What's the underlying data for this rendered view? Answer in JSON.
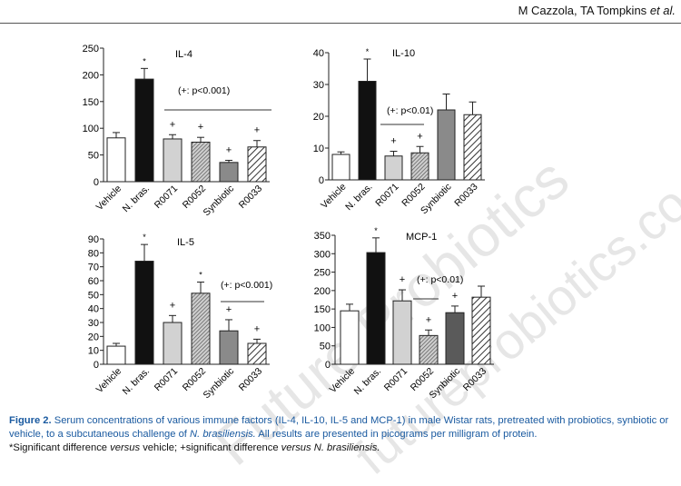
{
  "header": {
    "authors": "M Cazzola, TA Tompkins",
    "etal": "et al."
  },
  "caption": {
    "figure_label": "Figure 2.",
    "text": "Serum concentrations of various immune factors (IL-4, IL-10, IL-5 and MCP-1) in male Wistar rats, pretreated with probiotics, synbiotic or vehicle, to a subcutaneous challenge of",
    "species": "N. brasiliensis.",
    "text2": "All results are presented in picograms per milligram of protein.",
    "note_a": "*Significant difference",
    "note_versus1": "versus",
    "note_b": "vehicle; +significant difference",
    "note_versus2": "versus",
    "note_species": "N. brasiliensis."
  },
  "watermark": {
    "line1": "Future Probiotics",
    "line2": "futureprobiotics.co.uk"
  },
  "chart_data": [
    {
      "type": "bar",
      "title": "IL-4",
      "categories": [
        "Vehicle",
        "N. bras.",
        "R0071",
        "R0052",
        "Synbiotic",
        "R0033"
      ],
      "values": [
        82,
        192,
        80,
        74,
        36,
        65
      ],
      "errors": [
        10,
        20,
        8,
        9,
        4,
        12
      ],
      "marks": [
        "",
        "*",
        "+",
        "+",
        "+",
        "+"
      ],
      "fills": [
        "white",
        "black",
        "lightgray",
        "hatch-dense",
        "gray",
        "hatch"
      ],
      "ylim": [
        0,
        250
      ],
      "yticks": [
        0,
        50,
        100,
        150,
        200,
        250
      ],
      "annotation": "(+: p<0.001)"
    },
    {
      "type": "bar",
      "title": "IL-10",
      "categories": [
        "Vehicle",
        "N. bras.",
        "R0071",
        "R0052",
        "Synbiotic",
        "R0033"
      ],
      "values": [
        8,
        31,
        7.5,
        8.5,
        22,
        20.5
      ],
      "errors": [
        0.8,
        7,
        1.5,
        2,
        5,
        4
      ],
      "marks": [
        "",
        "*",
        "+",
        "+",
        "",
        ""
      ],
      "fills": [
        "white",
        "black",
        "lightgray",
        "hatch-dense",
        "gray",
        "hatch"
      ],
      "ylim": [
        0,
        40
      ],
      "yticks": [
        0,
        10,
        20,
        30,
        40
      ],
      "annotation": "(+: p<0.01)"
    },
    {
      "type": "bar",
      "title": "IL-5",
      "categories": [
        "Vehicle",
        "N. bras.",
        "R0071",
        "R0052",
        "Synbiotic",
        "R0033"
      ],
      "values": [
        13,
        74,
        30,
        51,
        24,
        15
      ],
      "errors": [
        2,
        12,
        5,
        8,
        8,
        3
      ],
      "marks": [
        "",
        "*",
        "+",
        "*",
        "+",
        "+"
      ],
      "fills": [
        "white",
        "black",
        "lightgray",
        "hatch-dense",
        "gray",
        "hatch"
      ],
      "ylim": [
        0,
        90
      ],
      "yticks": [
        0,
        10,
        20,
        30,
        40,
        50,
        60,
        70,
        80,
        90
      ],
      "annotation": "(+: p<0.001)"
    },
    {
      "type": "bar",
      "title": "MCP-1",
      "categories": [
        "Vehicle",
        "N. bras.",
        "R0071",
        "R0052",
        "Synbiotic",
        "R0033"
      ],
      "values": [
        145,
        303,
        172,
        78,
        140,
        182
      ],
      "errors": [
        18,
        40,
        30,
        15,
        18,
        30
      ],
      "marks": [
        "",
        "*",
        "+",
        "+",
        "+",
        ""
      ],
      "fills": [
        "white",
        "black",
        "lightgray",
        "hatch-dense",
        "darkgray",
        "hatch"
      ],
      "ylim": [
        0,
        350
      ],
      "yticks": [
        0,
        50,
        100,
        150,
        200,
        250,
        300,
        350
      ],
      "annotation": "(+: p<0.01)"
    }
  ]
}
